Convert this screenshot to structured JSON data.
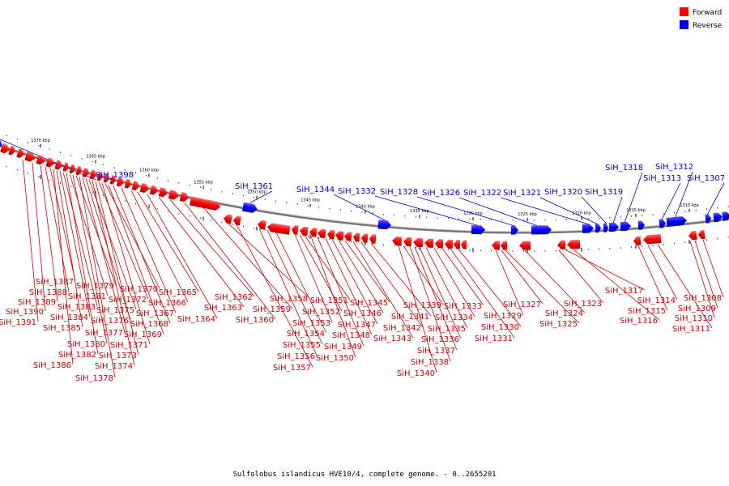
{
  "colors": {
    "forward": "#ff0000",
    "reverse": "#0000ff",
    "forward_text": "#cc0000",
    "reverse_text": "#0000cc",
    "backbone": "#888888"
  },
  "legend": [
    {
      "label": "Forward",
      "color": "#ff0000"
    },
    {
      "label": "Reverse",
      "color": "#0000ff"
    }
  ],
  "caption": "Sulfolobus islandicus HVE10/4, complete genome. - 0..2655201",
  "scale": {
    "unit": "kbp",
    "ticks": [
      1370,
      1365,
      1360,
      1355,
      1350,
      1345,
      1340,
      1335,
      1330,
      1325,
      1320,
      1315,
      1310
    ]
  },
  "reverse_genes": [
    "SiH_1398",
    "SiH_1361",
    "SiH_1344",
    "SiH_1332",
    "SiH_1328",
    "SiH_1326",
    "SiH_1322",
    "SiH_1321",
    "SiH_1320",
    "SiH_1319",
    "SiH_1318",
    "SiH_1313",
    "SiH_1312",
    "SiH_1307"
  ],
  "forward_genes": [
    "SiH_1391",
    "SiH_1390",
    "SiH_1389",
    "SiH_1388",
    "SiH_1387",
    "SiH_1386",
    "SiH_1385",
    "SiH_1384",
    "SiH_1383",
    "SiH_1382",
    "SiH_1381",
    "SiH_1380",
    "SiH_1379",
    "SiH_1378",
    "SiH_1377",
    "SiH_1376",
    "SiH_1375",
    "SiH_1374",
    "SiH_1373",
    "SiH_1372",
    "SiH_1371",
    "SiH_1370",
    "SiH_1369",
    "SiH_1368",
    "SiH_1367",
    "SiH_1366",
    "SiH_1365",
    "SiH_1364",
    "SiH_1363",
    "SiH_1362",
    "SiH_1360",
    "SiH_1359",
    "SiH_1358",
    "SiH_1357",
    "SiH_1356",
    "SiH_1355",
    "SiH_1354",
    "SiH_1353",
    "SiH_1352",
    "SiH_1351",
    "SiH_1350",
    "SiH_1349",
    "SiH_1348",
    "SiH_1347",
    "SiH_1346",
    "SiH_1345",
    "SiH_1343",
    "SiH_1342",
    "SiH_1341",
    "SiH_1340",
    "SiH_1339",
    "SiH_1338",
    "SiH_1337",
    "SiH_1336",
    "SiH_1335",
    "SiH_1334",
    "SiH_1333",
    "SiH_1331",
    "SiH_1330",
    "SiH_1329",
    "SiH_1327",
    "SiH_1325",
    "SiH_1324",
    "SiH_1323",
    "SiH_1317",
    "SiH_1316",
    "SiH_1315",
    "SiH_1314",
    "SiH_1311",
    "SiH_1310",
    "SiH_1309",
    "SiH_1308"
  ]
}
